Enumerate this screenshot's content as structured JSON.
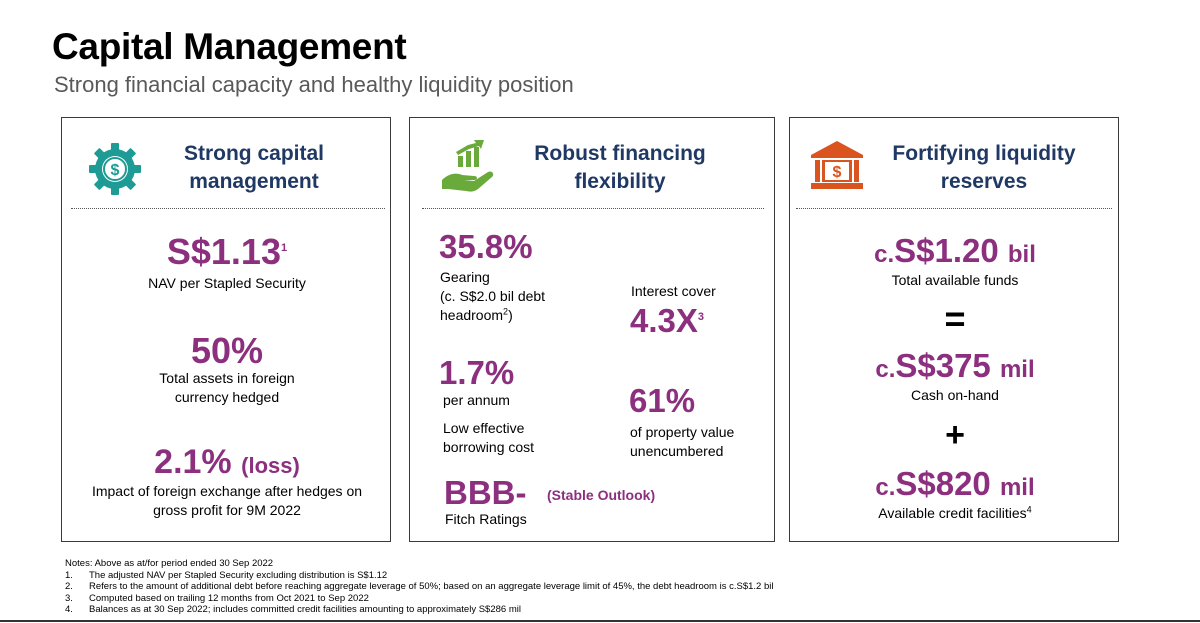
{
  "header": {
    "title": "Capital Management",
    "subtitle": "Strong financial capacity and healthy liquidity position"
  },
  "panels": {
    "capital": {
      "title_line1": "Strong capital",
      "title_line2": "management",
      "icon": "gear-dollar-icon",
      "nav_value": "S$1.13",
      "nav_sup": "1",
      "nav_label": "NAV per Stapled Security",
      "hedged_value": "50%",
      "hedged_label_line1": "Total assets in foreign",
      "hedged_label_line2": "currency hedged",
      "fx_value": "2.1%",
      "fx_suffix": "(loss)",
      "fx_label_line1": "Impact of foreign exchange after hedges on",
      "fx_label_line2": "gross profit for 9M 2022"
    },
    "financing": {
      "title_line1": "Robust financing",
      "title_line2": "flexibility",
      "icon": "hand-growth-chart-icon",
      "gearing_value": "35.8%",
      "gearing_label_line1": "Gearing",
      "gearing_label_line2": "(c. S$2.0 bil debt",
      "gearing_label_line3": "headroom",
      "gearing_sup": "2",
      "gearing_label_end": ")",
      "interest_label": "Interest cover",
      "interest_value": "4.3X",
      "interest_sup": "3",
      "cost_value": "1.7%",
      "cost_label_line1": "per annum",
      "cost_label_line2": "Low effective",
      "cost_label_line3": "borrowing cost",
      "unencumbered_value": "61%",
      "unencumbered_label_line1": "of property value",
      "unencumbered_label_line2": "unencumbered",
      "rating_value": "BBB-",
      "rating_outlook": "(Stable Outlook)",
      "rating_label": "Fitch Ratings"
    },
    "liquidity": {
      "title_line1": "Fortifying liquidity",
      "title_line2": "reserves",
      "icon": "bank-dollar-icon",
      "total_prefix": "c.",
      "total_value": "S$1.20",
      "total_unit": "bil",
      "total_label": "Total available funds",
      "equals": "=",
      "cash_prefix": "c.",
      "cash_value": "S$375",
      "cash_unit": "mil",
      "cash_label": "Cash on-hand",
      "plus": "+",
      "credit_prefix": "c.",
      "credit_value": "S$820",
      "credit_unit": "mil",
      "credit_label": "Available credit facilities",
      "credit_sup": "4"
    }
  },
  "notes": {
    "intro": "Notes: Above as at/for period ended 30 Sep 2022",
    "items": [
      {
        "num": "1.",
        "text": "The adjusted NAV per Stapled Security excluding distribution is S$1.12"
      },
      {
        "num": "2.",
        "text": "Refers to the amount of additional debt before reaching aggregate leverage of 50%; based on an aggregate leverage limit of 45%, the debt headroom is c.S$1.2 bil"
      },
      {
        "num": "3.",
        "text": "Computed based on trailing 12 months from Oct 2021 to Sep 2022"
      },
      {
        "num": "4.",
        "text": "Balances as at 30 Sep 2022; includes committed credit facilities amounting to approximately S$286 mil"
      }
    ]
  },
  "colors": {
    "accent_purple": "#8b2f7e",
    "title_navy": "#1f3864",
    "icon_teal": "#1e9b95",
    "icon_green": "#6aaa3a",
    "icon_orange": "#d9541e"
  }
}
